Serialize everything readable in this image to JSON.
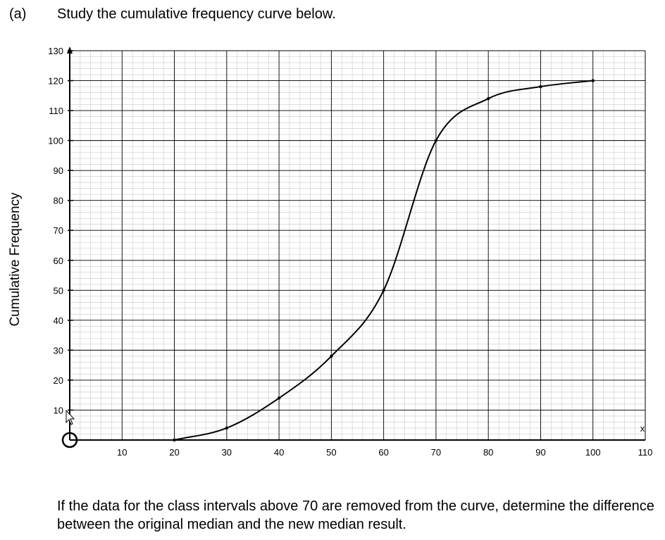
{
  "header": {
    "part": "(a)",
    "instruction": "Study the cumulative frequency curve below."
  },
  "question": {
    "text": "If the data for the class intervals above 70 are removed from the curve, determine the difference between the original median and the new median result."
  },
  "chart_data": {
    "type": "line",
    "title": "",
    "xlabel": "x",
    "ylabel": "Cumulative Frequency",
    "xlim": [
      0,
      110
    ],
    "ylim": [
      0,
      130
    ],
    "x_ticks": [
      10,
      20,
      30,
      40,
      50,
      60,
      70,
      80,
      90,
      100,
      110
    ],
    "y_ticks": [
      10,
      20,
      30,
      40,
      50,
      60,
      70,
      80,
      90,
      100,
      110,
      120,
      130
    ],
    "grid": true,
    "minor_grid_per_major": 5,
    "series": [
      {
        "x": [
          20,
          30,
          40,
          50,
          60,
          70,
          80,
          90,
          100
        ],
        "y": [
          0,
          4,
          14,
          28,
          50,
          100,
          114,
          118,
          120
        ]
      }
    ],
    "colors": {
      "curve": "#000000",
      "major_grid": "#000000",
      "minor_grid": "#c8c8c8"
    }
  }
}
